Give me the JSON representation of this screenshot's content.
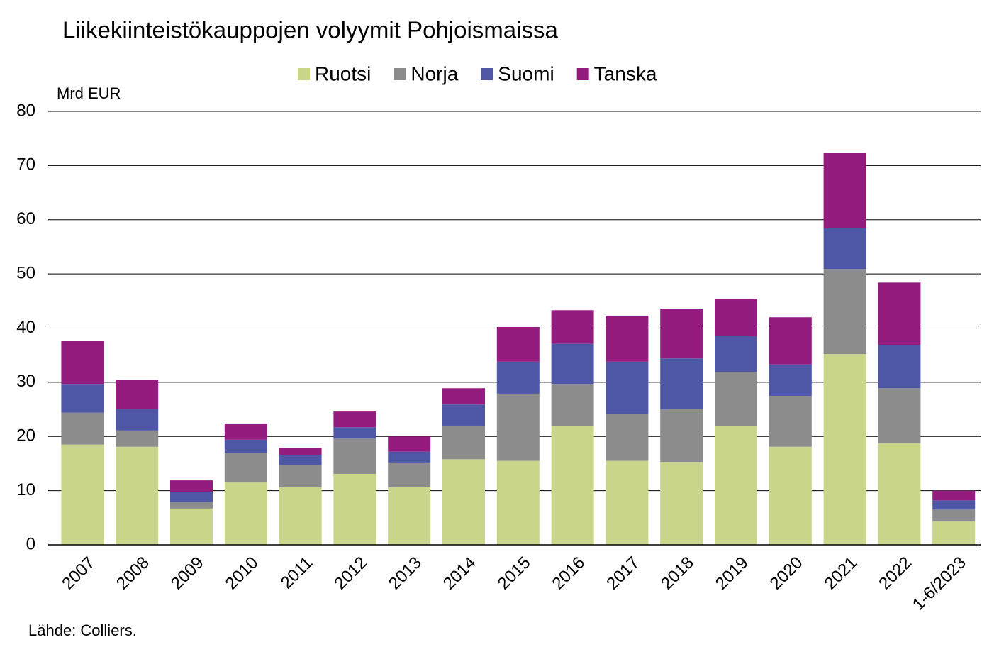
{
  "chart_data": {
    "type": "stacked_bar",
    "title": "Liikekiinteistökauppojen volyymit Pohjoismaissa",
    "y_label": "Mrd EUR",
    "source": "Lähde: Colliers.",
    "categories": [
      "2007",
      "2008",
      "2009",
      "2010",
      "2011",
      "2012",
      "2013",
      "2014",
      "2015",
      "2016",
      "2017",
      "2018",
      "2019",
      "2020",
      "2021",
      "2022",
      "1-6/2023"
    ],
    "series": [
      {
        "name": "Ruotsi",
        "color": "#c9d68a",
        "values": [
          18.5,
          18.1,
          6.7,
          11.5,
          10.6,
          13.1,
          10.6,
          15.8,
          15.5,
          22.0,
          15.5,
          15.3,
          22.0,
          18.1,
          35.2,
          18.7,
          4.3
        ]
      },
      {
        "name": "Norja",
        "color": "#8c8c8c",
        "values": [
          5.9,
          3.0,
          1.2,
          5.5,
          4.1,
          6.5,
          4.6,
          6.2,
          12.4,
          7.7,
          8.6,
          9.7,
          9.9,
          9.4,
          15.7,
          10.2,
          2.2
        ]
      },
      {
        "name": "Suomi",
        "color": "#4e56a6",
        "values": [
          5.3,
          4.0,
          1.9,
          2.4,
          1.9,
          2.1,
          2.0,
          3.9,
          5.9,
          7.4,
          9.7,
          9.4,
          6.6,
          5.8,
          7.5,
          8.0,
          1.7
        ]
      },
      {
        "name": "Tanska",
        "color": "#951c7f",
        "values": [
          8.0,
          5.3,
          2.1,
          3.0,
          1.3,
          2.9,
          2.8,
          3.0,
          6.4,
          6.2,
          8.5,
          9.2,
          6.9,
          8.7,
          13.9,
          11.5,
          1.8
        ]
      }
    ],
    "ylim": [
      0,
      80
    ],
    "yticks": [
      0,
      10,
      20,
      30,
      40,
      50,
      60,
      70,
      80
    ],
    "grid": true,
    "legend": "top"
  }
}
